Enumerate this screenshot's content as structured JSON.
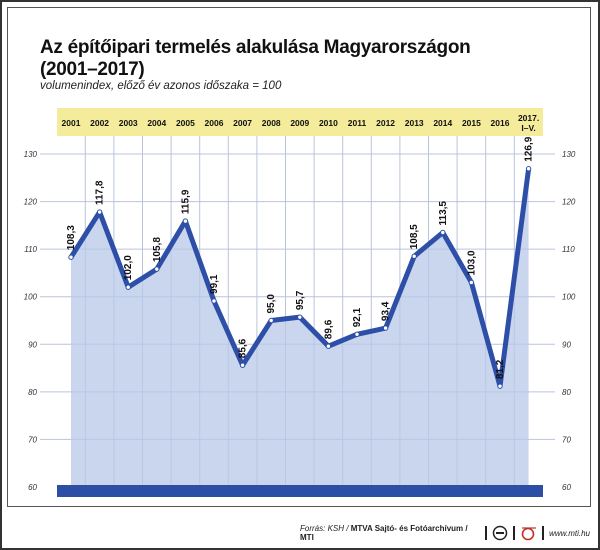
{
  "header": {
    "title_line1": "Az építőipari termelés alakulása Magyarországon",
    "title_line2": "(2001–2017)",
    "subtitle": "volumenindex, előző év azonos időszaka = 100"
  },
  "footer": {
    "source_prefix": "Forrás: KSH / ",
    "source_bold": "MTVA Sajtó- és Fotóarchívum / MTI",
    "website": "www.mti.hu"
  },
  "colors": {
    "line": "#2e4fa8",
    "fill": "#b8c8e8",
    "year_band": "#f4ec9a",
    "baseline_bar": "#2c4ea4",
    "grid": "#b9c4dc"
  },
  "chart_data": {
    "type": "line",
    "title": "Az építőipari termelés alakulása Magyarországon (2001–2017)",
    "subtitle": "volumenindex, előző év azonos időszaka = 100",
    "categories": [
      "2001",
      "2002",
      "2003",
      "2004",
      "2005",
      "2006",
      "2007",
      "2008",
      "2009",
      "2010",
      "2011",
      "2012",
      "2013",
      "2014",
      "2015",
      "2016",
      "2017. I–V."
    ],
    "values": [
      108.3,
      117.8,
      102.0,
      105.8,
      115.9,
      99.1,
      85.6,
      95.0,
      95.7,
      89.6,
      92.1,
      93.4,
      108.5,
      113.5,
      103.0,
      81.2,
      126.9
    ],
    "value_labels": [
      "108,3",
      "117,8",
      "102,0",
      "105,8",
      "115,9",
      "99,1",
      "85,6",
      "95,0",
      "95,7",
      "89,6",
      "92,1",
      "93,4",
      "108,5",
      "113,5",
      "103,0",
      "81,2",
      "126,9"
    ],
    "xlabel": "",
    "ylabel": "",
    "ylim": [
      60,
      130
    ],
    "yticks": [
      60,
      70,
      80,
      90,
      100,
      110,
      120,
      130
    ],
    "grid": true,
    "legend": "none",
    "axis_labels_both_sides": true
  }
}
